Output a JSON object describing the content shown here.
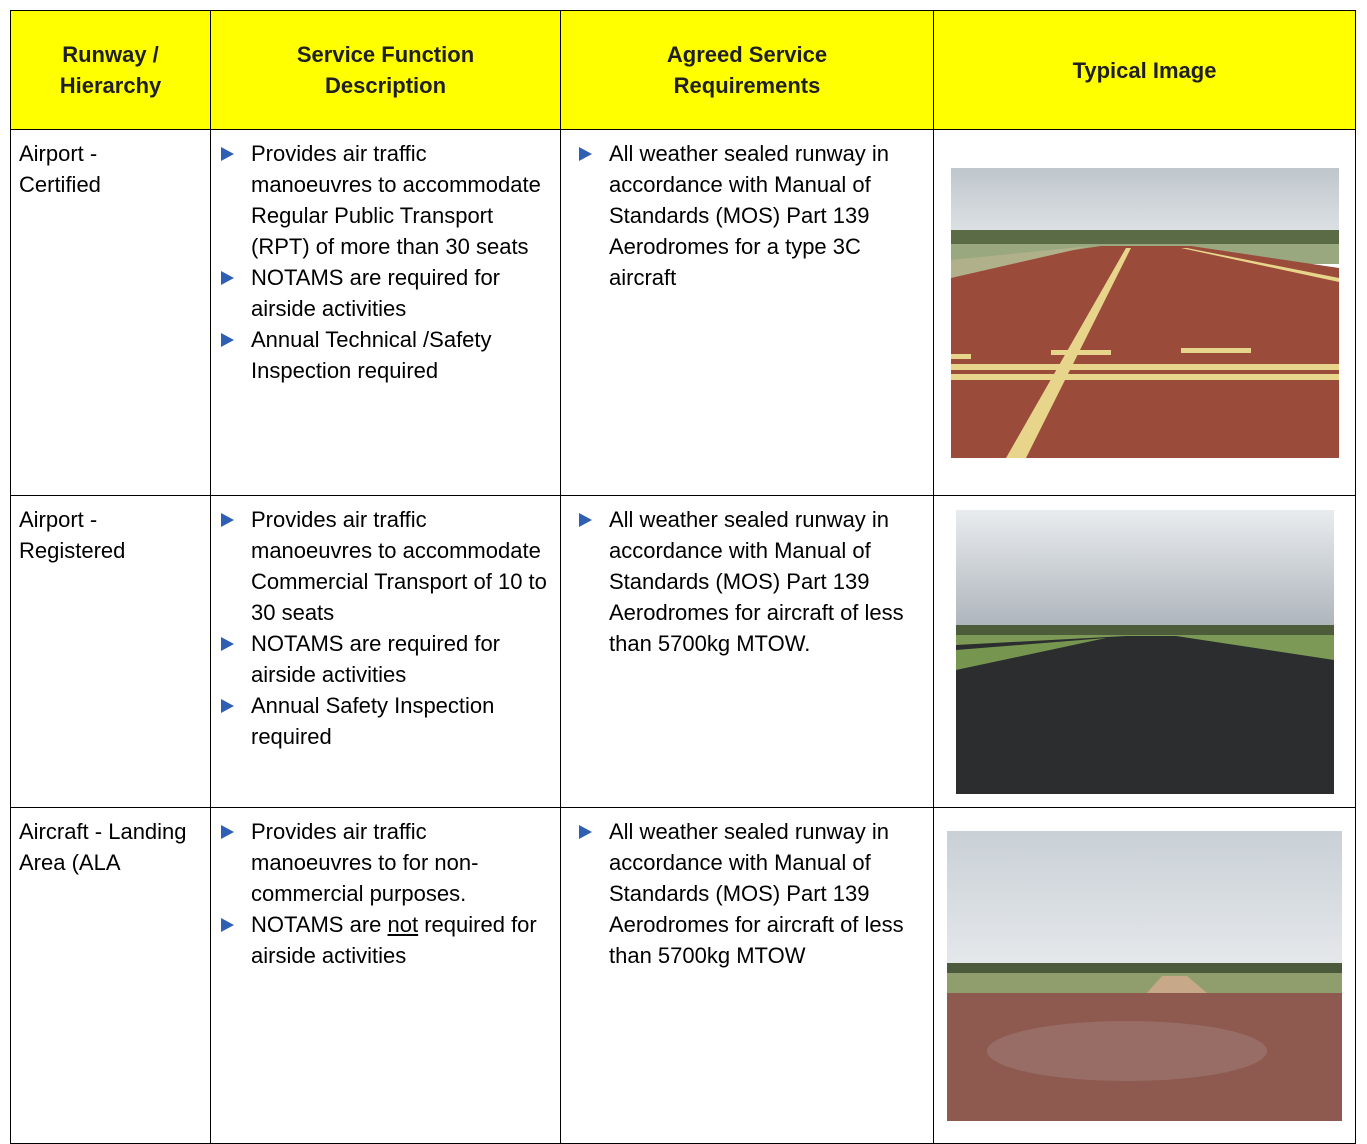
{
  "table": {
    "headers": [
      "Runway / Hierarchy",
      "Service Function Description",
      "Agreed Service Requirements",
      "Typical Image"
    ],
    "rows": [
      {
        "hierarchy": "Airport - Certified",
        "description": [
          "Provides air traffic manoeuvres to accommodate Regular Public Transport (RPT) of more than 30 seats",
          "NOTAMS are required for airside activities",
          "Annual Technical /Safety Inspection required"
        ],
        "requirements": [
          "All weather sealed runway in accordance with Manual of Standards (MOS) Part 139 Aerodromes for a type 3C aircraft"
        ]
      },
      {
        "hierarchy": "Airport - Registered",
        "description": [
          "Provides air traffic manoeuvres to accommodate Commercial Transport of 10 to 30 seats",
          "NOTAMS are required for airside activities",
          "Annual Safety Inspection required"
        ],
        "requirements": [
          "All weather sealed runway in accordance with Manual of Standards (MOS) Part 139 Aerodromes for aircraft of less than 5700kg MTOW."
        ]
      },
      {
        "hierarchy": "Aircraft - Landing Area (ALA",
        "description": [
          "Provides air traffic manoeuvres to for non-commercial purposes.",
          {
            "before": "NOTAMS are",
            "underlined": "not",
            "after": "required for airside activities"
          }
        ],
        "requirements": [
          "All weather sealed runway in accordance with Manual of Standards (MOS) Part 139 Aerodromes for aircraft of less than 5700kg MTOW"
        ]
      }
    ]
  }
}
